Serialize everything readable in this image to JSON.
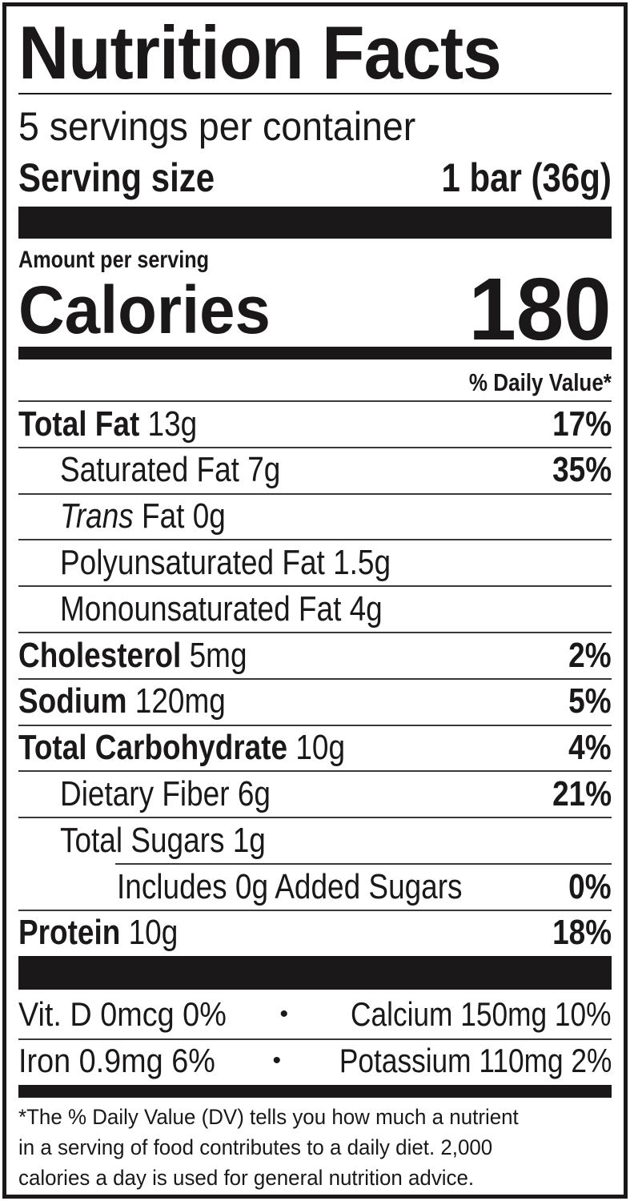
{
  "title": "Nutrition Facts",
  "servings_per_container": "5 servings per container",
  "serving_size": {
    "label": "Serving size",
    "value": "1 bar (36g)"
  },
  "amount_per_serving": "Amount per serving",
  "calories": {
    "label": "Calories",
    "value": "180"
  },
  "daily_value_header": "% Daily Value*",
  "nutrients": [
    {
      "name": "Total Fat",
      "amount": "13g",
      "dv": "17%",
      "bold": true,
      "indent": 0
    },
    {
      "name": "Saturated Fat",
      "amount": "7g",
      "dv": "35%",
      "bold": false,
      "indent": 1
    },
    {
      "name": "Trans",
      "name_suffix": "Fat",
      "amount": "0g",
      "dv": "",
      "bold": false,
      "indent": 1,
      "italic_prefix": true
    },
    {
      "name": "Polyunsaturated Fat",
      "amount": "1.5g",
      "dv": "",
      "bold": false,
      "indent": 1
    },
    {
      "name": "Monounsaturated Fat",
      "amount": "4g",
      "dv": "",
      "bold": false,
      "indent": 1
    },
    {
      "name": "Cholesterol",
      "amount": "5mg",
      "dv": "2%",
      "bold": true,
      "indent": 0
    },
    {
      "name": "Sodium",
      "amount": "120mg",
      "dv": "5%",
      "bold": true,
      "indent": 0
    },
    {
      "name": "Total Carbohydrate",
      "amount": "10g",
      "dv": "4%",
      "bold": true,
      "indent": 0
    },
    {
      "name": "Dietary Fiber",
      "amount": "6g",
      "dv": "21%",
      "bold": false,
      "indent": 1
    },
    {
      "name": "Total Sugars",
      "amount": "1g",
      "dv": "",
      "bold": false,
      "indent": 1
    },
    {
      "name": "Includes 0g Added Sugars",
      "amount": "",
      "dv": "0%",
      "bold": false,
      "indent": 2
    },
    {
      "name": "Protein",
      "amount": "10g",
      "dv": "18%",
      "bold": true,
      "indent": 0
    }
  ],
  "vitamins": [
    {
      "left": "Vit. D 0mcg 0%",
      "right": "Calcium 150mg 10%"
    },
    {
      "left": "Iron 0.9mg 6%",
      "right": "Potassium 110mg 2%"
    }
  ],
  "bullet": "•",
  "footnote": [
    "*The % Daily Value (DV) tells you how much a nutrient",
    "in a serving of food contributes to a daily diet. 2,000",
    "calories a day is used for general nutrition advice."
  ]
}
